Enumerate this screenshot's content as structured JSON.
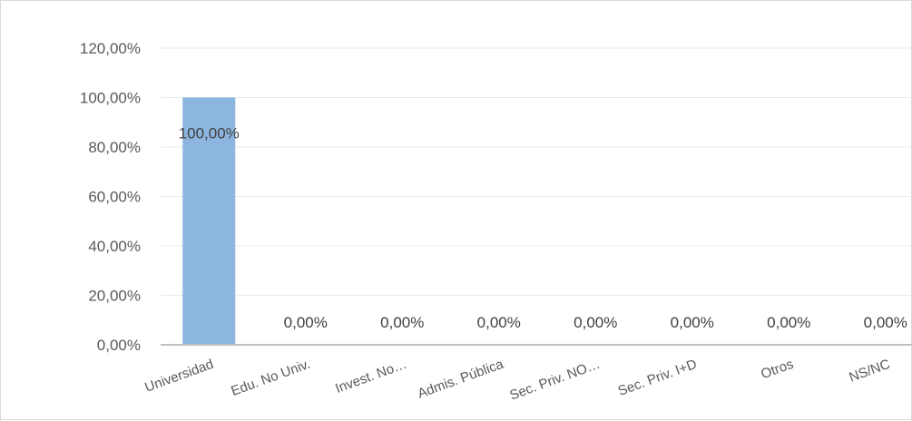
{
  "chart_data": {
    "type": "bar",
    "categories": [
      "Universidad",
      "Edu. No Univ.",
      "Invest. No…",
      "Admis. Pública",
      "Sec. Priv. NO…",
      "Sec. Priv. I+D",
      "Otros",
      "NS/NC"
    ],
    "values": [
      100,
      0,
      0,
      0,
      0,
      0,
      0,
      0
    ],
    "data_labels": [
      "100,00%",
      "0,00%",
      "0,00%",
      "0,00%",
      "0,00%",
      "0,00%",
      "0,00%",
      "0,00%"
    ],
    "y_ticks": [
      "0,00%",
      "20,00%",
      "40,00%",
      "60,00%",
      "80,00%",
      "100,00%",
      "120,00%"
    ],
    "ylim": [
      0,
      120
    ],
    "grid": true,
    "legend": "none",
    "bar_color": "#8cb6e0",
    "title": "",
    "xlabel": "",
    "ylabel": ""
  }
}
